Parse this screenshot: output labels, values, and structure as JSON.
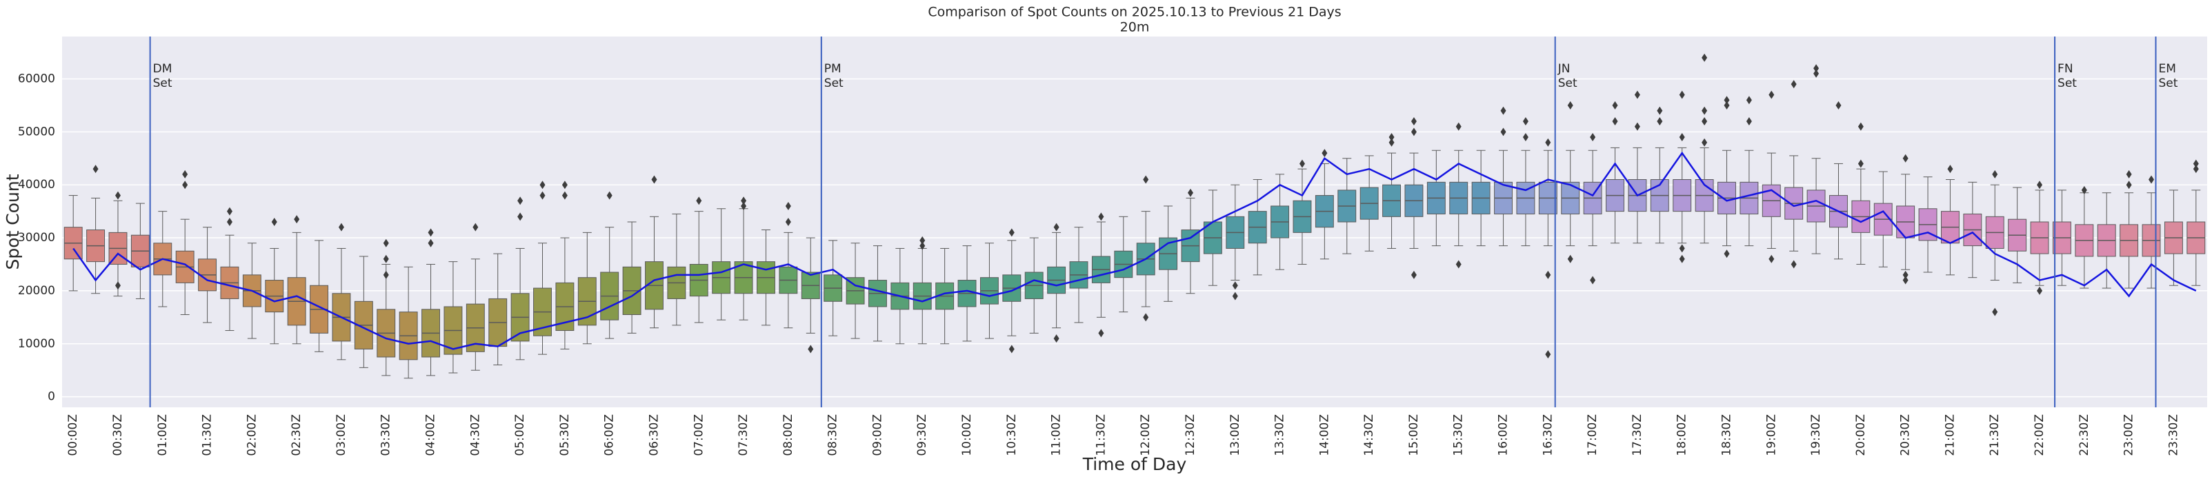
{
  "chart_data": {
    "type": "box",
    "title": "Comparison of Spot Counts on 2025.10.13 to Previous 21 Days",
    "subtitle": "20m",
    "x_label": "Time of Day",
    "y_label": "Spot Count",
    "ylim": [
      -2000,
      68000
    ],
    "yticks": [
      0,
      10000,
      20000,
      30000,
      40000,
      50000,
      60000
    ],
    "grid": true,
    "categories": [
      "00:00Z",
      null,
      "00:30Z",
      null,
      "01:00Z",
      null,
      "01:30Z",
      null,
      "02:00Z",
      null,
      "02:30Z",
      null,
      "03:00Z",
      null,
      "03:30Z",
      null,
      "04:00Z",
      null,
      "04:30Z",
      null,
      "05:00Z",
      null,
      "05:30Z",
      null,
      "06:00Z",
      null,
      "06:30Z",
      null,
      "07:00Z",
      null,
      "07:30Z",
      null,
      "08:00Z",
      null,
      "08:30Z",
      null,
      "09:00Z",
      null,
      "09:30Z",
      null,
      "10:00Z",
      null,
      "10:30Z",
      null,
      "11:00Z",
      null,
      "11:30Z",
      null,
      "12:00Z",
      null,
      "12:30Z",
      null,
      "13:00Z",
      null,
      "13:30Z",
      null,
      "14:00Z",
      null,
      "14:30Z",
      null,
      "15:00Z",
      null,
      "15:30Z",
      null,
      "16:00Z",
      null,
      "16:30Z",
      null,
      "17:00Z",
      null,
      "17:30Z",
      null,
      "18:00Z",
      null,
      "18:30Z",
      null,
      "19:00Z",
      null,
      "19:30Z",
      null,
      "20:00Z",
      null,
      "20:30Z",
      null,
      "21:00Z",
      null,
      "21:30Z",
      null,
      "22:00Z",
      null,
      "22:30Z",
      null,
      "23:00Z",
      null,
      "23:30Z",
      null
    ],
    "boxes": [
      [
        20000,
        26000,
        29000,
        32000,
        38000
      ],
      [
        19500,
        25500,
        28500,
        31500,
        37500
      ],
      [
        19000,
        25000,
        28000,
        31000,
        37000
      ],
      [
        18500,
        24500,
        27500,
        30500,
        36500
      ],
      [
        17000,
        23000,
        26000,
        29000,
        35000
      ],
      [
        15500,
        21500,
        24500,
        27500,
        33500
      ],
      [
        14000,
        20000,
        23000,
        26000,
        32000
      ],
      [
        12500,
        18500,
        21500,
        24500,
        30500
      ],
      [
        11000,
        17000,
        20000,
        23000,
        29000
      ],
      [
        10000,
        16000,
        19000,
        22000,
        28000
      ],
      [
        10000,
        13500,
        18000,
        22500,
        31000
      ],
      [
        8500,
        12000,
        16500,
        21000,
        29500
      ],
      [
        7000,
        10500,
        15000,
        19500,
        28000
      ],
      [
        5500,
        9000,
        13500,
        18000,
        26500
      ],
      [
        4000,
        7500,
        12000,
        16500,
        25000
      ],
      [
        3500,
        7000,
        11500,
        16000,
        24500
      ],
      [
        4000,
        7500,
        12000,
        16500,
        25000
      ],
      [
        4500,
        8000,
        12500,
        17000,
        25500
      ],
      [
        5000,
        8500,
        13000,
        17500,
        26000
      ],
      [
        6000,
        9500,
        14000,
        18500,
        27000
      ],
      [
        7000,
        10500,
        15000,
        19500,
        28000
      ],
      [
        8000,
        11500,
        16000,
        20500,
        29000
      ],
      [
        9000,
        12500,
        17000,
        21500,
        30000
      ],
      [
        10000,
        13500,
        18000,
        22500,
        31000
      ],
      [
        11000,
        14500,
        19000,
        23500,
        32000
      ],
      [
        12000,
        15500,
        20000,
        24500,
        33000
      ],
      [
        13000,
        16500,
        21000,
        25500,
        34000
      ],
      [
        13500,
        18500,
        21500,
        24500,
        34500
      ],
      [
        14000,
        19000,
        22000,
        25000,
        35000
      ],
      [
        14500,
        19500,
        22500,
        25500,
        35500
      ],
      [
        14500,
        19500,
        22500,
        25500,
        35500
      ],
      [
        13500,
        19500,
        22500,
        25500,
        31500
      ],
      [
        13000,
        19500,
        22000,
        24500,
        31000
      ],
      [
        12000,
        18500,
        21000,
        23500,
        30000
      ],
      [
        11500,
        18000,
        20500,
        23000,
        29500
      ],
      [
        11000,
        17500,
        20000,
        22500,
        29000
      ],
      [
        10500,
        17000,
        19500,
        22000,
        28500
      ],
      [
        10000,
        16500,
        19000,
        21500,
        28000
      ],
      [
        10000,
        16500,
        19000,
        21500,
        28000
      ],
      [
        10000,
        16500,
        19000,
        21500,
        28000
      ],
      [
        10500,
        17000,
        19500,
        22000,
        28500
      ],
      [
        11000,
        17500,
        20000,
        22500,
        29000
      ],
      [
        11500,
        18000,
        20500,
        23000,
        29500
      ],
      [
        12000,
        18500,
        21000,
        23500,
        30000
      ],
      [
        13000,
        19500,
        22000,
        24500,
        31000
      ],
      [
        14000,
        20500,
        23000,
        25500,
        32000
      ],
      [
        15000,
        21500,
        24000,
        26500,
        33000
      ],
      [
        16000,
        22500,
        25000,
        27500,
        34000
      ],
      [
        17000,
        23000,
        26000,
        29000,
        35000
      ],
      [
        18000,
        24000,
        27000,
        30000,
        36000
      ],
      [
        19500,
        25500,
        28500,
        31500,
        37500
      ],
      [
        21000,
        27000,
        30000,
        33000,
        39000
      ],
      [
        22000,
        28000,
        31000,
        34000,
        40000
      ],
      [
        23000,
        29000,
        32000,
        35000,
        41000
      ],
      [
        24000,
        30000,
        33000,
        36000,
        42000
      ],
      [
        25000,
        31000,
        34000,
        37000,
        43000
      ],
      [
        26000,
        32000,
        35000,
        38000,
        44000
      ],
      [
        27000,
        33000,
        36000,
        39000,
        45000
      ],
      [
        27500,
        33500,
        36500,
        39500,
        45500
      ],
      [
        28000,
        34000,
        37000,
        40000,
        46000
      ],
      [
        28000,
        34000,
        37000,
        40000,
        46000
      ],
      [
        28500,
        34500,
        37500,
        40500,
        46500
      ],
      [
        28500,
        34500,
        37500,
        40500,
        46500
      ],
      [
        28500,
        34500,
        37500,
        40500,
        46500
      ],
      [
        28500,
        34500,
        37500,
        40500,
        46500
      ],
      [
        28500,
        34500,
        37500,
        40500,
        46500
      ],
      [
        28500,
        34500,
        37500,
        40500,
        46500
      ],
      [
        28500,
        34500,
        37500,
        40500,
        46500
      ],
      [
        28500,
        34500,
        37500,
        40500,
        46500
      ],
      [
        29000,
        35000,
        38000,
        41000,
        47000
      ],
      [
        29000,
        35000,
        38000,
        41000,
        47000
      ],
      [
        29000,
        35000,
        38000,
        41000,
        47000
      ],
      [
        29000,
        35000,
        38000,
        41000,
        47000
      ],
      [
        29000,
        35000,
        38000,
        41000,
        47000
      ],
      [
        28500,
        34500,
        37500,
        40500,
        46500
      ],
      [
        28500,
        34500,
        37500,
        40500,
        46500
      ],
      [
        28000,
        34000,
        37000,
        40000,
        46000
      ],
      [
        27500,
        33500,
        36500,
        39500,
        45500
      ],
      [
        27000,
        33000,
        36000,
        39000,
        45000
      ],
      [
        26000,
        32000,
        35000,
        38000,
        44000
      ],
      [
        25000,
        31000,
        34000,
        37000,
        43000
      ],
      [
        24500,
        30500,
        33500,
        36500,
        42500
      ],
      [
        24000,
        30000,
        33000,
        36000,
        42000
      ],
      [
        23500,
        29500,
        32500,
        35500,
        41500
      ],
      [
        23000,
        29000,
        32000,
        35000,
        41000
      ],
      [
        22500,
        28500,
        31500,
        34500,
        40500
      ],
      [
        22000,
        28000,
        31000,
        34000,
        40000
      ],
      [
        21500,
        27500,
        30500,
        33500,
        39500
      ],
      [
        21000,
        27000,
        30000,
        33000,
        39000
      ],
      [
        21000,
        27000,
        30000,
        33000,
        39000
      ],
      [
        20500,
        26500,
        29500,
        32500,
        38500
      ],
      [
        20500,
        26500,
        29500,
        32500,
        38500
      ],
      [
        20500,
        26500,
        29500,
        32500,
        38500
      ],
      [
        20500,
        26500,
        29500,
        32500,
        38500
      ],
      [
        21000,
        27000,
        30000,
        33000,
        39000
      ],
      [
        21000,
        27000,
        30000,
        33000,
        39000
      ]
    ],
    "box_colors": [
      "#d4837f",
      "#d4837f",
      "#d4837f",
      "#d4837f",
      "#cc8a66",
      "#cc8a66",
      "#cc8a66",
      "#cc8a66",
      "#bf8c55",
      "#bf8c55",
      "#bf8c55",
      "#bf8c55",
      "#b08f4f",
      "#b08f4f",
      "#b08f4f",
      "#b08f4f",
      "#a0944b",
      "#a0944b",
      "#a0944b",
      "#a0944b",
      "#93984a",
      "#93984a",
      "#93984a",
      "#93984a",
      "#86994b",
      "#86994b",
      "#86994b",
      "#86994b",
      "#75a052",
      "#75a052",
      "#75a052",
      "#75a052",
      "#63a166",
      "#63a166",
      "#63a166",
      "#63a166",
      "#58a076",
      "#58a076",
      "#58a076",
      "#58a076",
      "#4f9e82",
      "#4f9e82",
      "#4f9e82",
      "#4f9e82",
      "#4d9d8e",
      "#4d9d8e",
      "#4d9d8e",
      "#4d9d8e",
      "#4e9c98",
      "#4e9c98",
      "#4e9c98",
      "#4e9c98",
      "#519aa3",
      "#519aa3",
      "#519aa3",
      "#519aa3",
      "#5699ad",
      "#5699ad",
      "#5699ad",
      "#5699ad",
      "#5f97b8",
      "#5f97b8",
      "#5f97b8",
      "#5f97b8",
      "#8f9fd1",
      "#8f9fd1",
      "#8f9fd1",
      "#8f9fd1",
      "#a39bd6",
      "#a39bd6",
      "#a39bd6",
      "#a39bd6",
      "#b098d6",
      "#b098d6",
      "#b098d6",
      "#b098d6",
      "#bd93d4",
      "#bd93d4",
      "#bd93d4",
      "#bd93d4",
      "#c98dcc",
      "#c98dcc",
      "#c98dcc",
      "#c98dcc",
      "#d38abc",
      "#d38abc",
      "#d38abc",
      "#d38abc",
      "#d98aae",
      "#d98aae",
      "#d98aae",
      "#d98aae",
      "#d98a9c",
      "#d98a9c",
      "#d98a9c",
      "#d98a9c"
    ],
    "outliers": [
      [],
      [
        43000
      ],
      [
        38000,
        21000
      ],
      [],
      [],
      [
        42000,
        40000
      ],
      [],
      [
        35000,
        33000
      ],
      [],
      [
        33000
      ],
      [
        33500
      ],
      [],
      [
        32000
      ],
      [],
      [
        29000,
        26000,
        23000
      ],
      [],
      [
        31000,
        29000
      ],
      [],
      [
        32000
      ],
      [],
      [
        37000,
        34000
      ],
      [
        40000,
        38000
      ],
      [
        40000,
        38000
      ],
      [],
      [
        38000
      ],
      [],
      [
        41000
      ],
      [],
      [
        37000
      ],
      [],
      [
        37000,
        36000
      ],
      [],
      [
        36000,
        33000
      ],
      [
        9000
      ],
      [],
      [],
      [],
      [],
      [
        29500,
        28500
      ],
      [],
      [],
      [],
      [
        31000,
        9000
      ],
      [],
      [
        32000,
        11000
      ],
      [],
      [
        34000,
        12000
      ],
      [],
      [
        41000,
        15000
      ],
      [],
      [
        38500
      ],
      [],
      [
        21000,
        19000
      ],
      [],
      [],
      [
        44000
      ],
      [
        46000
      ],
      [],
      [],
      [
        48000,
        49000
      ],
      [
        52000,
        50000,
        23000
      ],
      [],
      [
        51000,
        25000
      ],
      [],
      [
        54000,
        50000
      ],
      [
        52000,
        49000
      ],
      [
        48000,
        8000,
        23000
      ],
      [
        55000,
        26000
      ],
      [
        22000,
        49000
      ],
      [
        55000,
        52000
      ],
      [
        57000,
        51000
      ],
      [
        54000,
        52000
      ],
      [
        57000,
        49000,
        28000,
        26000
      ],
      [
        64000,
        54000,
        52000,
        48000
      ],
      [
        55000,
        56000,
        27000
      ],
      [
        56000,
        52000
      ],
      [
        57000,
        26000
      ],
      [
        59000,
        25000
      ],
      [
        62000,
        61000
      ],
      [
        55000
      ],
      [
        51000,
        44000
      ],
      [],
      [
        45000,
        23000,
        22000
      ],
      [],
      [
        43000
      ],
      [],
      [
        16000,
        42000
      ],
      [],
      [
        40000,
        20000
      ],
      [],
      [
        39000
      ],
      [],
      [
        40000,
        42000
      ],
      [
        41000
      ],
      [],
      [
        43000,
        44000
      ]
    ],
    "line": {
      "color": "#1414e0",
      "values": [
        28000,
        22000,
        27000,
        24000,
        26000,
        25000,
        22000,
        21000,
        20000,
        18000,
        19000,
        17000,
        15000,
        13000,
        11000,
        10000,
        10500,
        9000,
        10000,
        9500,
        12000,
        13000,
        14000,
        15000,
        17000,
        19000,
        22000,
        23000,
        23000,
        23500,
        25000,
        24000,
        25000,
        23000,
        24000,
        21000,
        20000,
        19000,
        18000,
        19500,
        20000,
        19000,
        20000,
        22000,
        21000,
        22000,
        23000,
        24000,
        26000,
        29000,
        30000,
        33000,
        35000,
        37000,
        40000,
        38000,
        45000,
        42000,
        43000,
        41000,
        43000,
        41000,
        44000,
        42000,
        40000,
        39000,
        41000,
        40000,
        38000,
        44000,
        38000,
        40000,
        46000,
        40000,
        37000,
        38000,
        39000,
        36000,
        37000,
        35000,
        33000,
        35000,
        30000,
        31000,
        29000,
        31000,
        27000,
        25000,
        22000,
        23000,
        21000,
        24000,
        19000,
        25000,
        22000,
        20000
      ]
    },
    "events": [
      {
        "x": 0.86,
        "text": [
          "DM",
          "Set"
        ]
      },
      {
        "x": 8.37,
        "text": [
          "PM",
          "Set"
        ]
      },
      {
        "x": 16.58,
        "text": [
          "JN",
          "Set"
        ]
      },
      {
        "x": 22.17,
        "text": [
          "FN",
          "Set"
        ]
      },
      {
        "x": 23.3,
        "text": [
          "EM",
          "Set"
        ]
      }
    ],
    "event_color": "#3a5fbf"
  }
}
